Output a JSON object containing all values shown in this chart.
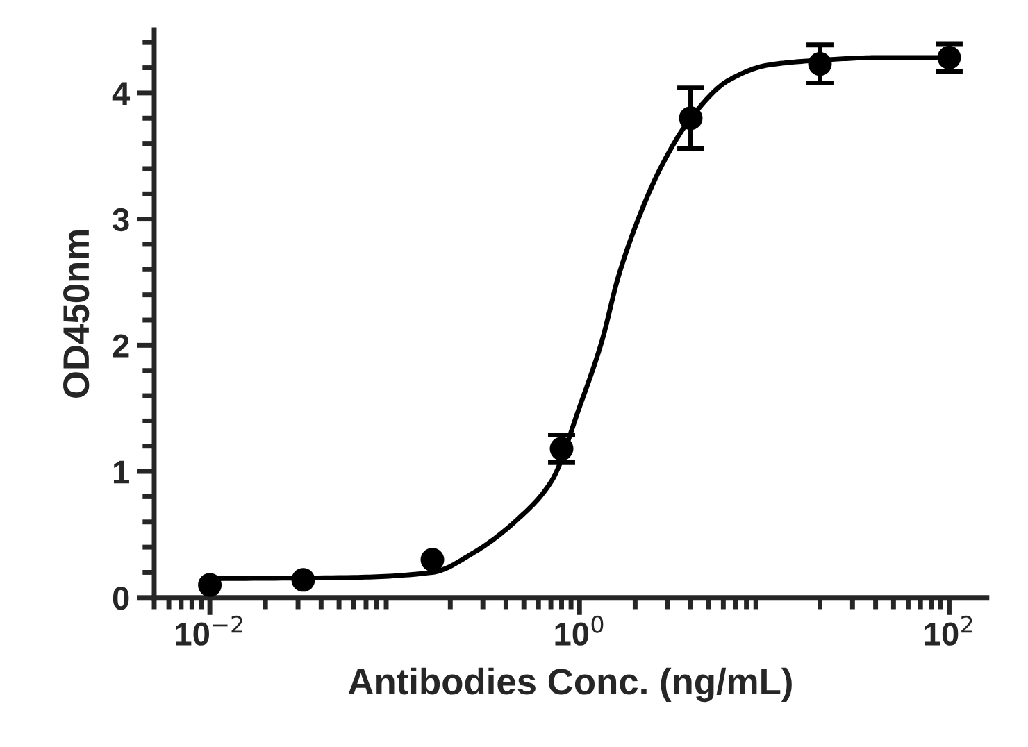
{
  "chart_data": {
    "type": "scatter",
    "xlabel": "Antibodies Conc. (ng/mL)",
    "ylabel": "OD450nm",
    "log": "x",
    "xlim": [
      0.005,
      160
    ],
    "xticks": [
      {
        "value": 0.01,
        "label": "10$^{−2}$"
      },
      {
        "value": 1,
        "label": "10$^{0}$"
      },
      {
        "value": 100,
        "label": "10$^{2}$"
      }
    ],
    "ylim": [
      0,
      4.5
    ],
    "yticks": [
      0,
      1,
      2,
      3,
      4
    ],
    "grid": false,
    "series": [
      {
        "marker": "circle",
        "color": "#000000",
        "x": [
          0.01,
          0.032,
          0.16,
          0.8,
          4,
          20,
          100
        ],
        "values": [
          0.1,
          0.14,
          0.3,
          1.18,
          3.8,
          4.23,
          4.28
        ],
        "errors": [
          null,
          null,
          null,
          0.11,
          0.24,
          0.15,
          0.11
        ]
      },
      {
        "type": "line",
        "marker": "none",
        "color": "#000000",
        "x": [
          0.01,
          0.06,
          0.16,
          0.27,
          0.47,
          0.71,
          1,
          1.32,
          1.62,
          2.13,
          2.8,
          4,
          6.4,
          10.4,
          20,
          41,
          100
        ],
        "values": [
          0.15,
          0.16,
          0.2,
          0.36,
          0.63,
          0.93,
          1.51,
          2.03,
          2.54,
          3.04,
          3.43,
          3.8,
          4.1,
          4.22,
          4.26,
          4.28,
          4.28
        ]
      }
    ]
  }
}
